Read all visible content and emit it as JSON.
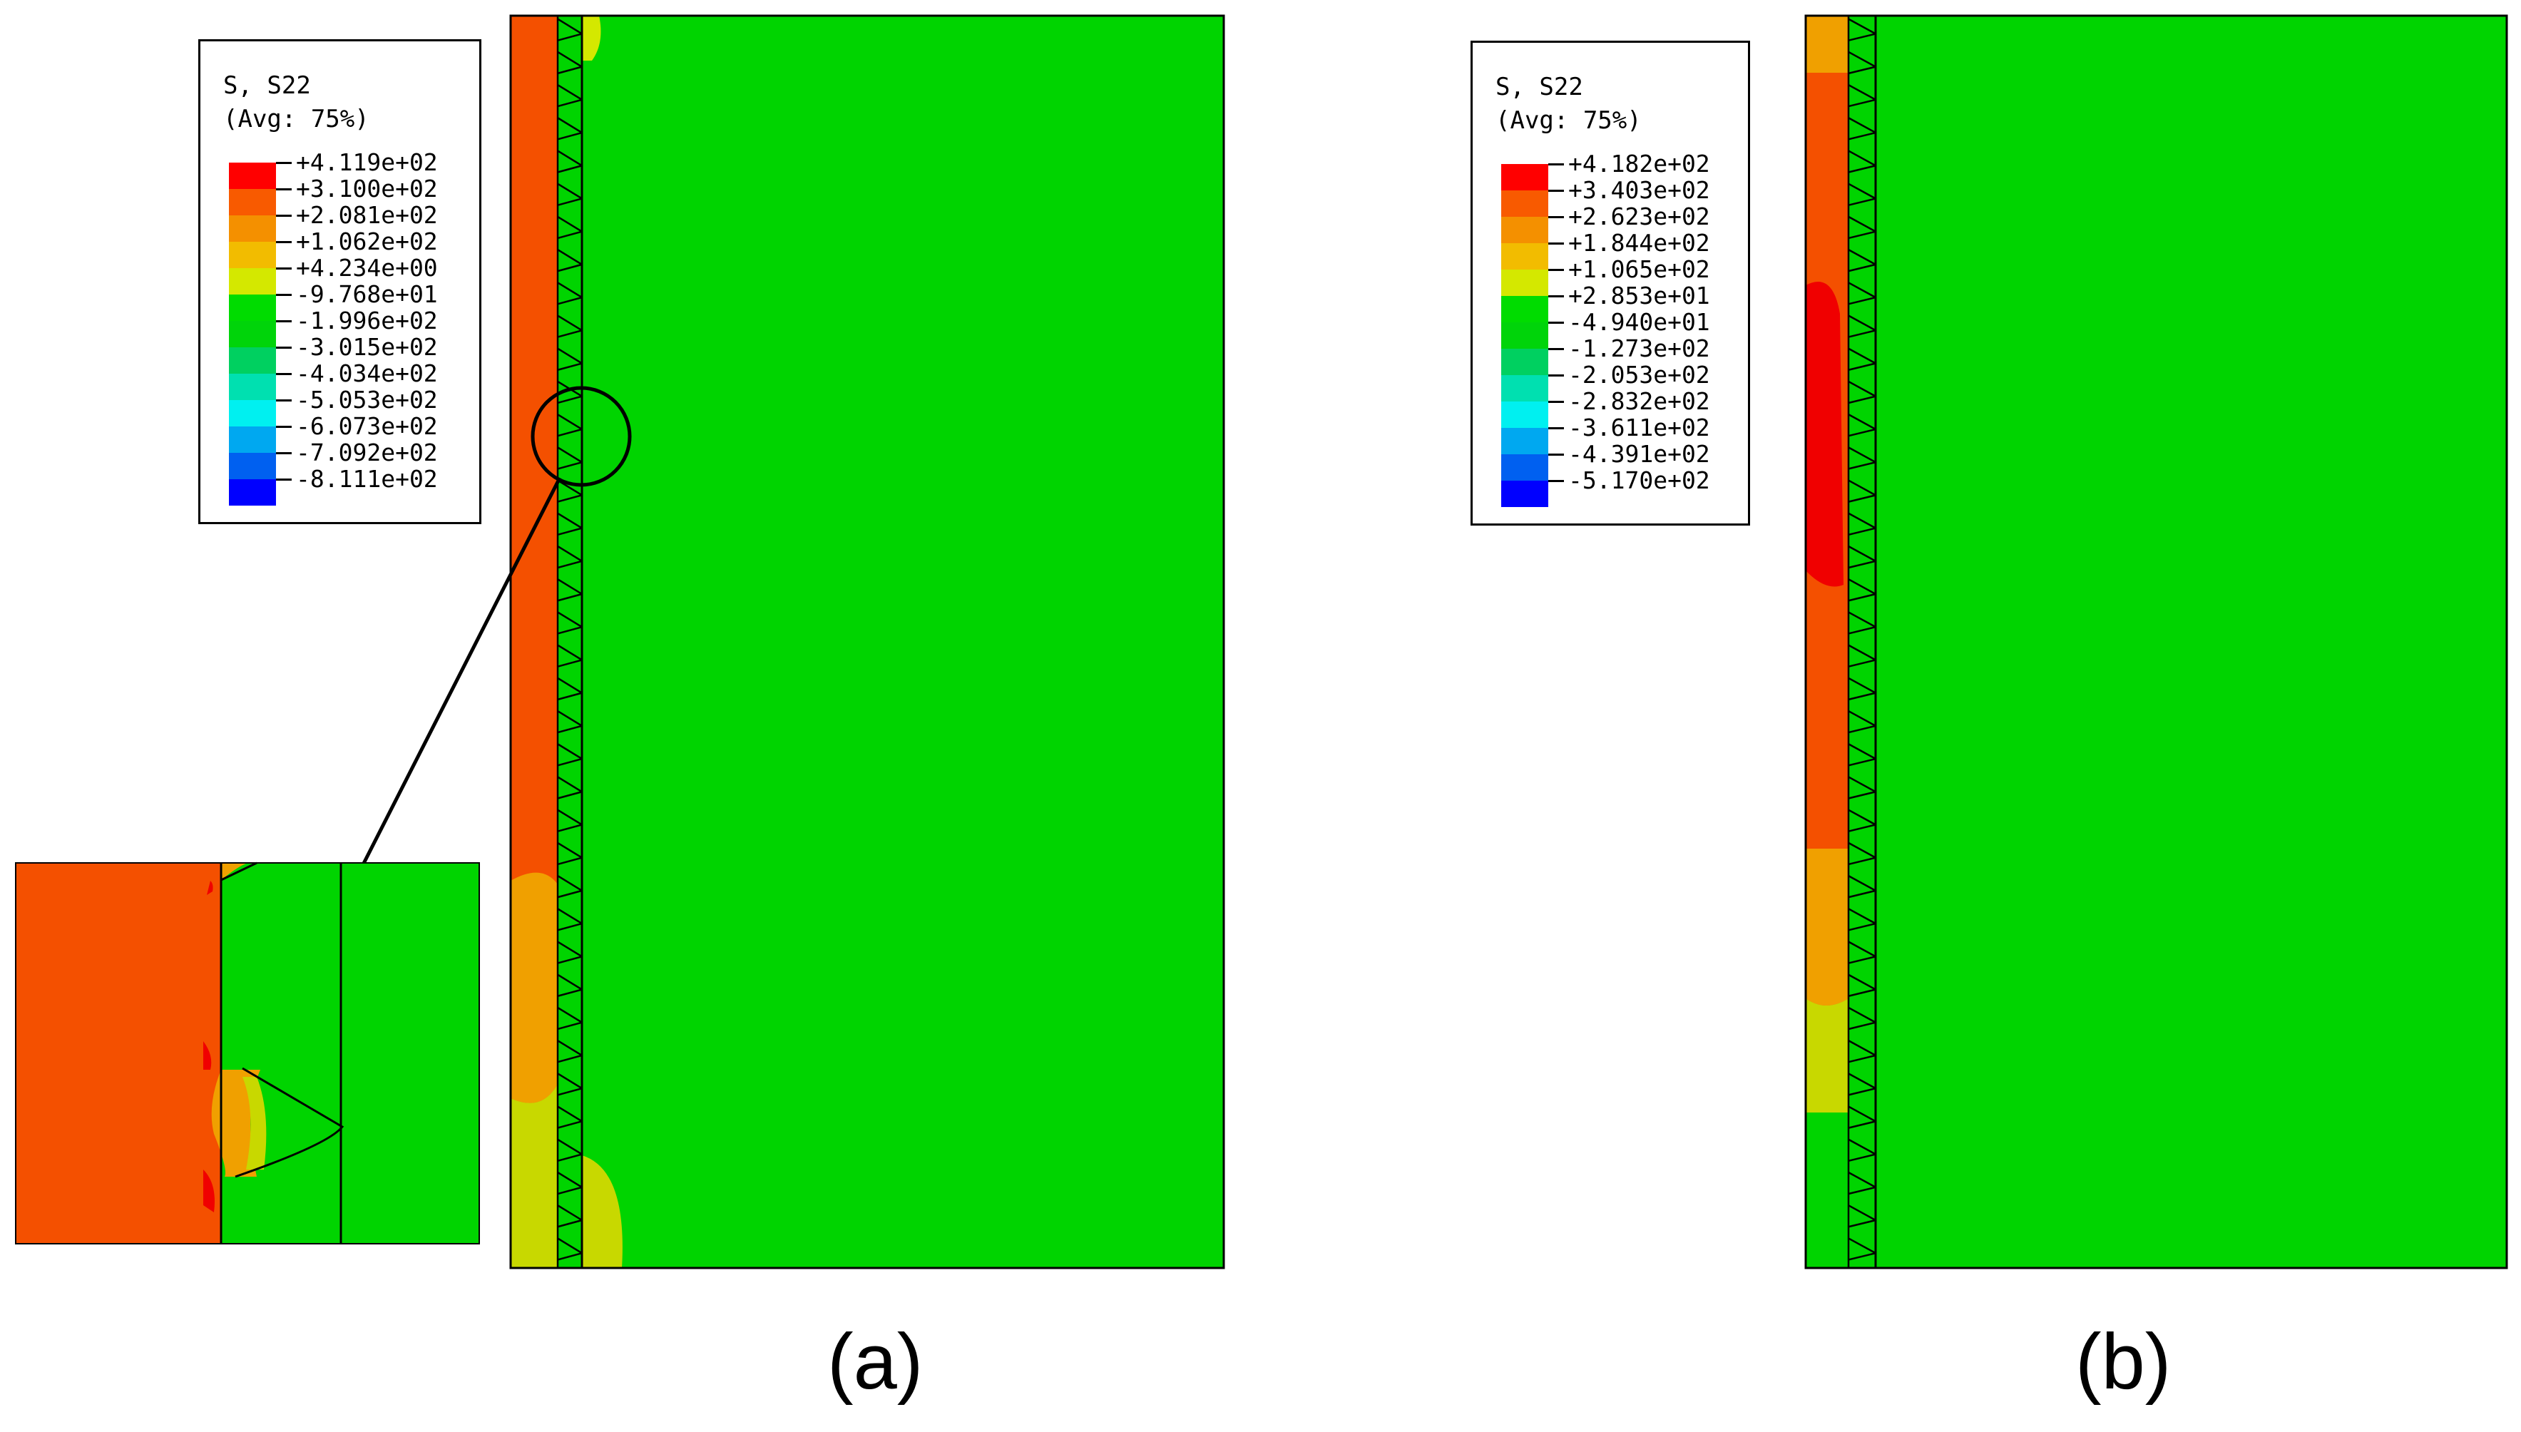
{
  "panels": [
    {
      "label": "(a)",
      "legend": {
        "title_line1": "S, S22",
        "title_line2": "(Avg: 75%)",
        "values": [
          "+4.119e+02",
          "+3.100e+02",
          "+2.081e+02",
          "+1.062e+02",
          "+4.234e+00",
          "-9.768e+01",
          "-1.996e+02",
          "-3.015e+02",
          "-4.034e+02",
          "-5.053e+02",
          "-6.073e+02",
          "-7.092e+02",
          "-8.111e+02"
        ]
      }
    },
    {
      "label": "(b)",
      "legend": {
        "title_line1": "S, S22",
        "title_line2": "(Avg: 75%)",
        "values": [
          "+4.182e+02",
          "+3.403e+02",
          "+2.623e+02",
          "+1.844e+02",
          "+1.065e+02",
          "+2.853e+01",
          "-4.940e+01",
          "-1.273e+02",
          "-2.053e+02",
          "-2.832e+02",
          "-3.611e+02",
          "-4.391e+02",
          "-5.170e+02"
        ]
      }
    }
  ],
  "colors": {
    "scale": [
      "#ff0000",
      "#f85a00",
      "#f49000",
      "#f2bc00",
      "#d4e800",
      "#00dc00",
      "#00d40a",
      "#00d060",
      "#00e0b0",
      "#00f0f0",
      "#00a8f0",
      "#0060f0",
      "#0000ff"
    ],
    "field_green": "#00d400",
    "rim_orange": "#f45000",
    "rim_light_orange": "#f0a000",
    "rim_yellow": "#c8d800",
    "rim_red": "#f00000",
    "zoom_mid_green": "#30d000"
  },
  "annotations": {
    "zoom_circle": "circle",
    "zoom_arrow": "arrow",
    "zoom_inset": "inset"
  }
}
